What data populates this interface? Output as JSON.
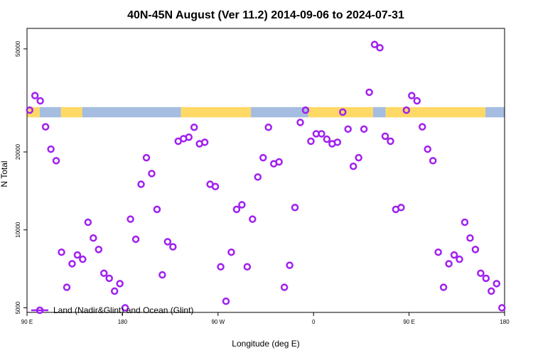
{
  "chart_data": {
    "type": "scatter",
    "title": "40N-45N August (Ver 11.2)   2014-09-06 to 2024-07-31",
    "xlabel": "Longitude (deg E)",
    "ylabel": "N Total",
    "x_ticks": [
      {
        "value": 90,
        "label": "90 E"
      },
      {
        "value": 180,
        "label": "180"
      },
      {
        "value": 270,
        "label": "90 W"
      },
      {
        "value": 360,
        "label": "0"
      },
      {
        "value": 450,
        "label": "90 E"
      },
      {
        "value": 540,
        "label": "180"
      }
    ],
    "y_ticks": [
      {
        "value": 5000,
        "label": "5000"
      },
      {
        "value": 10000,
        "label": "10000"
      },
      {
        "value": 20000,
        "label": "20000"
      },
      {
        "value": 50000,
        "label": "50000"
      }
    ],
    "xlim": [
      90,
      540
    ],
    "ylim": [
      4800,
      60000
    ],
    "y_scale": "log",
    "grid": false,
    "legend": {
      "position": "bottom-left",
      "label": "Land (Nadir&Glint) and Ocean (Glint)"
    },
    "series": [
      {
        "name": "Land (Nadir&Glint) and Ocean (Glint)",
        "color": "#a020f0",
        "marker": "open-circle",
        "x": [
          92.5,
          97.5,
          102.5,
          107.5,
          112.5,
          117.5,
          122.5,
          127.5,
          132.5,
          137.5,
          142.5,
          147.5,
          152.5,
          157.5,
          162.5,
          167.5,
          172.5,
          177.5,
          182.5,
          187.5,
          192.5,
          197.5,
          202.5,
          207.5,
          212.5,
          217.5,
          222.5,
          227.5,
          232.5,
          237.5,
          242.5,
          247.5,
          252.5,
          257.5,
          262.5,
          267.5,
          272.5,
          277.5,
          282.5,
          287.5,
          292.5,
          297.5,
          302.5,
          307.5,
          312.5,
          317.5,
          322.5,
          327.5,
          332.5,
          337.5,
          342.5,
          347.5,
          352.5,
          357.5,
          362.5,
          367.5,
          372.5,
          377.5,
          382.5,
          387.5,
          392.5,
          397.5,
          402.5,
          407.5,
          412.5,
          417.5,
          422.5,
          427.5,
          432.5,
          437.5,
          442.5,
          447.5,
          452.5,
          457.5,
          462.5,
          467.5,
          472.5,
          477.5,
          482.5,
          487.5,
          492.5,
          497.5,
          502.5,
          507.5,
          512.5,
          517.5,
          522.5,
          527.5,
          532.5,
          537.5
        ],
        "y": [
          29000,
          33000,
          31500,
          25000,
          20500,
          18500,
          8200,
          6000,
          7400,
          8000,
          7700,
          10700,
          9300,
          8400,
          6800,
          6500,
          5800,
          6200,
          5000,
          11000,
          9200,
          15000,
          19000,
          16500,
          12000,
          6700,
          9000,
          8600,
          22000,
          22500,
          22800,
          24900,
          21500,
          21800,
          15000,
          14700,
          7200,
          5300,
          8200,
          12000,
          12500,
          7200,
          11000,
          16000,
          19000,
          24900,
          18000,
          18300,
          6000,
          7300,
          12200,
          26000,
          29000,
          22000,
          23500,
          23500,
          22400,
          21500,
          21800,
          28500,
          24500,
          17600,
          19000,
          24500,
          34000,
          52000,
          50500,
          23000,
          22000,
          12000,
          12200,
          29000,
          33000,
          31500,
          25000,
          20500,
          18500,
          8200,
          6000,
          7400,
          8000,
          7700,
          10700,
          9300,
          8400,
          6800,
          6500,
          5800,
          6200,
          5000
        ]
      }
    ],
    "surface_strip": {
      "y_range": [
        27200,
        29800
      ],
      "land_color": "#ffd966",
      "ocean_color": "#a4bde0",
      "segments": [
        {
          "x0": 90,
          "x1": 102,
          "type": "land"
        },
        {
          "x0": 102,
          "x1": 122,
          "type": "ocean"
        },
        {
          "x0": 122,
          "x1": 142,
          "type": "land"
        },
        {
          "x0": 142,
          "x1": 235,
          "type": "ocean"
        },
        {
          "x0": 235,
          "x1": 301,
          "type": "land"
        },
        {
          "x0": 301,
          "x1": 355,
          "type": "ocean"
        },
        {
          "x0": 355,
          "x1": 416,
          "type": "land"
        },
        {
          "x0": 416,
          "x1": 428,
          "type": "ocean"
        },
        {
          "x0": 428,
          "x1": 522,
          "type": "land"
        },
        {
          "x0": 522,
          "x1": 540,
          "type": "ocean"
        }
      ]
    }
  }
}
